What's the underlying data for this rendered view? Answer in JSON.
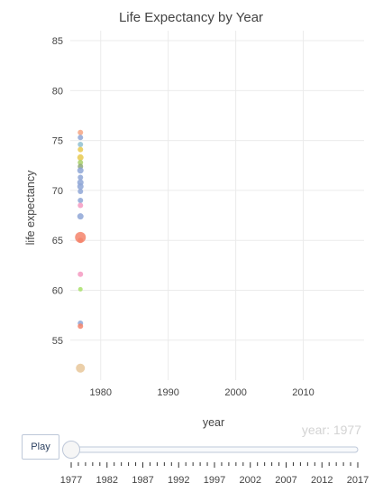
{
  "chart_data": {
    "type": "scatter",
    "title": "Life Expectancy by Year",
    "xlabel": "year",
    "ylabel": "life expectancy",
    "xlim": [
      1975.5,
      2019
    ],
    "ylim": [
      51,
      86
    ],
    "x_ticks": [
      1980,
      1990,
      2000,
      2010
    ],
    "y_ticks": [
      55,
      60,
      65,
      70,
      75,
      80,
      85
    ],
    "grid": true,
    "legend": "none",
    "frame_label": "year: 1977",
    "points": [
      {
        "x": 1977,
        "y": 75.8,
        "color": "#f4a582",
        "size": "s"
      },
      {
        "x": 1977,
        "y": 75.3,
        "color": "#8ea6d6",
        "size": "s"
      },
      {
        "x": 1977,
        "y": 74.6,
        "color": "#8fc0d1",
        "size": "s"
      },
      {
        "x": 1977,
        "y": 74.1,
        "color": "#e8c94f",
        "size": "s"
      },
      {
        "x": 1977,
        "y": 73.3,
        "color": "#e8c94f",
        "size": "m"
      },
      {
        "x": 1977,
        "y": 72.8,
        "color": "#a8d06a",
        "size": "s"
      },
      {
        "x": 1977,
        "y": 72.4,
        "color": "#8fa87a",
        "size": "s"
      },
      {
        "x": 1977,
        "y": 72.0,
        "color": "#8ea6d6",
        "size": "m"
      },
      {
        "x": 1977,
        "y": 71.3,
        "color": "#8ea6d6",
        "size": "s"
      },
      {
        "x": 1977,
        "y": 70.8,
        "color": "#8ea6d6",
        "size": "m"
      },
      {
        "x": 1977,
        "y": 70.4,
        "color": "#8ea6d6",
        "size": "m"
      },
      {
        "x": 1977,
        "y": 69.9,
        "color": "#8ea6d6",
        "size": "s"
      },
      {
        "x": 1977,
        "y": 69.0,
        "color": "#8ea6d6",
        "size": "s"
      },
      {
        "x": 1977,
        "y": 68.5,
        "color": "#f49ac1",
        "size": "s"
      },
      {
        "x": 1977,
        "y": 67.4,
        "color": "#8ea6d6",
        "size": "m"
      },
      {
        "x": 1977,
        "y": 65.3,
        "color": "#f4846b",
        "size": "xl"
      },
      {
        "x": 1977,
        "y": 65.0,
        "color": "#f4846b",
        "size": "s"
      },
      {
        "x": 1977,
        "y": 61.6,
        "color": "#f49ac1",
        "size": "s"
      },
      {
        "x": 1977,
        "y": 60.1,
        "color": "#a8e06a",
        "size": "xs"
      },
      {
        "x": 1977,
        "y": 56.7,
        "color": "#8ea6d6",
        "size": "s"
      },
      {
        "x": 1977,
        "y": 56.4,
        "color": "#f4846b",
        "size": "s"
      },
      {
        "x": 1977,
        "y": 52.2,
        "color": "#e8c79a",
        "size": "l"
      }
    ],
    "slider": {
      "value": 1977,
      "min": 1977,
      "max": 2017,
      "labels": [
        "1977",
        "1982",
        "1987",
        "1992",
        "1997",
        "2002",
        "2007",
        "2012",
        "2017"
      ]
    }
  },
  "controls": {
    "play_label": "Play"
  }
}
